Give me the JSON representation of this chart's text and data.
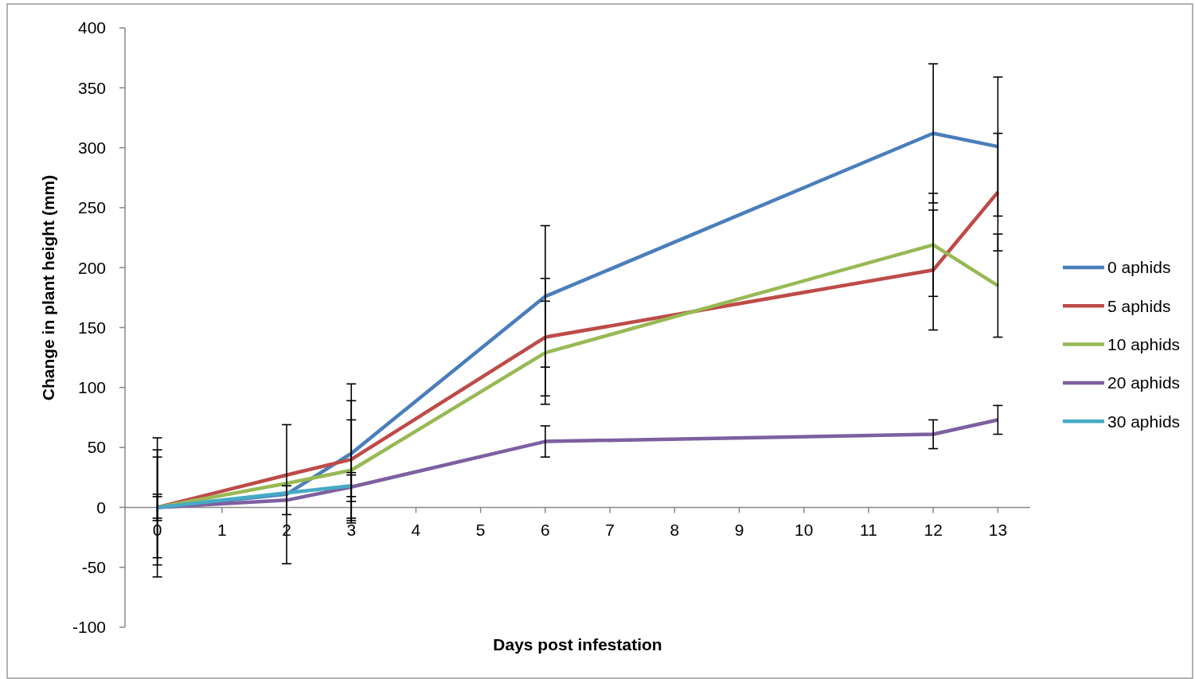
{
  "chart_data": {
    "type": "line",
    "xlabel": "Days post infestation",
    "ylabel": "Change in plant height (mm)",
    "x": [
      0,
      2,
      3,
      6,
      12,
      13
    ],
    "xlim": [
      -0.5,
      13.5
    ],
    "xticks": [
      0,
      1,
      2,
      3,
      4,
      5,
      6,
      7,
      8,
      9,
      10,
      11,
      12,
      13
    ],
    "ylim": [
      -100,
      400
    ],
    "yticks": [
      -100,
      -50,
      0,
      50,
      100,
      150,
      200,
      250,
      300,
      350,
      400
    ],
    "grid": false,
    "legend": "right",
    "marker": "none",
    "line_style": "solid",
    "series": [
      {
        "name": "0 aphids",
        "color": "#4a7ebb",
        "values": [
          0,
          11,
          45,
          176,
          312,
          301
        ],
        "errors": [
          48,
          58,
          58,
          59,
          58,
          58
        ]
      },
      {
        "name": "5 aphids",
        "color": "#be4b48",
        "values": [
          0,
          27,
          40,
          142,
          198,
          263
        ],
        "errors": [
          58,
          null,
          49,
          49,
          50,
          49
        ]
      },
      {
        "name": "10 aphids",
        "color": "#98b954",
        "values": [
          0,
          20,
          31,
          129,
          219,
          185
        ],
        "errors": [
          42,
          null,
          42,
          43,
          43,
          43
        ]
      },
      {
        "name": "20 aphids",
        "color": "#7d60a0",
        "values": [
          0,
          6,
          17,
          55,
          61,
          73
        ],
        "errors": [
          9,
          12,
          12,
          13,
          12,
          12
        ]
      },
      {
        "name": "30 aphids",
        "color": "#46aac5",
        "x": [
          0,
          2,
          3
        ],
        "values": [
          0,
          12,
          18
        ],
        "errors": [
          11,
          null,
          9
        ]
      }
    ]
  }
}
